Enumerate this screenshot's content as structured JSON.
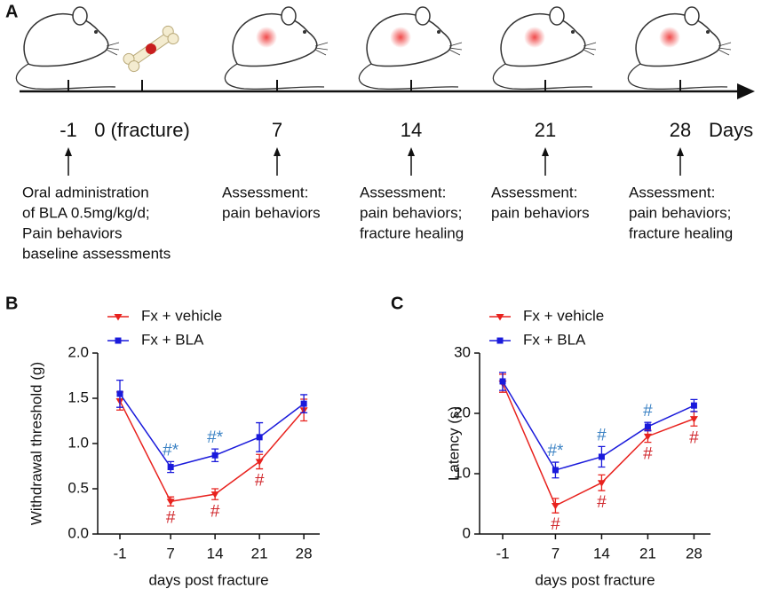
{
  "panel_labels": [
    "A",
    "B",
    "C"
  ],
  "timeline": {
    "unit": "Days",
    "points": [
      {
        "label": "-1",
        "description": [
          "Oral administration",
          "of BLA 0.5mg/kg/d;",
          "Pain behaviors",
          "baseline assessments"
        ]
      },
      {
        "label": "0 (fracture)",
        "description": []
      },
      {
        "label": "7",
        "description": [
          "Assessment:",
          "pain behaviors"
        ]
      },
      {
        "label": "14",
        "description": [
          "Assessment:",
          "pain behaviors;",
          "fracture healing"
        ]
      },
      {
        "label": "21",
        "description": [
          "Assessment:",
          "pain behaviors"
        ]
      },
      {
        "label": "28",
        "description": [
          "Assessment:",
          "pain behaviors;",
          "fracture healing"
        ]
      }
    ]
  },
  "chart_data": [
    {
      "type": "line",
      "xlabel": "days post fracture",
      "ylabel": "Withdrawal threshold (g)",
      "x": [
        -1,
        7,
        14,
        21,
        28
      ],
      "xlim": [
        -4.5,
        30.5
      ],
      "xticks": [
        -1,
        7,
        14,
        21,
        28
      ],
      "ylim": [
        0,
        2
      ],
      "yticks": [
        {
          "value": 0,
          "label": "0.0"
        },
        0.5,
        {
          "value": 1,
          "label": "1.0"
        },
        1.5,
        {
          "value": 2,
          "label": "2.0"
        }
      ],
      "series": [
        {
          "name": "Fx + vehicle",
          "color": "#e8221e",
          "marker": "triangle-down",
          "values": [
            1.47,
            0.36,
            0.44,
            0.8,
            1.37
          ],
          "errors": [
            0.1,
            0.05,
            0.06,
            0.08,
            0.12
          ],
          "annotations": [
            null,
            "#",
            "#",
            "#",
            null
          ],
          "annotation_color": "#d0262b",
          "annotation_side": "below"
        },
        {
          "name": "Fx + BLA",
          "color": "#1a1adb",
          "marker": "square",
          "values": [
            1.55,
            0.74,
            0.87,
            1.07,
            1.44
          ],
          "errors": [
            0.15,
            0.06,
            0.07,
            0.16,
            0.1
          ],
          "annotations": [
            null,
            "#*",
            "#*",
            null,
            null
          ],
          "annotation_color": "#3b82c4",
          "annotation_side": "above"
        }
      ]
    },
    {
      "type": "line",
      "xlabel": "days post fracture",
      "ylabel": "Latency (s)",
      "x": [
        -1,
        7,
        14,
        21,
        28
      ],
      "xlim": [
        -4.5,
        30.5
      ],
      "xticks": [
        -1,
        7,
        14,
        21,
        28
      ],
      "ylim": [
        0,
        30
      ],
      "yticks": [
        0,
        10,
        20,
        30
      ],
      "series": [
        {
          "name": "Fx + vehicle",
          "color": "#e8221e",
          "marker": "triangle-down",
          "values": [
            25.0,
            4.7,
            8.5,
            16.2,
            19.1
          ],
          "errors": [
            1.5,
            1.2,
            1.3,
            1.0,
            1.2
          ],
          "annotations": [
            null,
            "#",
            "#",
            "#",
            "#"
          ],
          "annotation_color": "#d0262b",
          "annotation_side": "below"
        },
        {
          "name": "Fx + BLA",
          "color": "#1a1adb",
          "marker": "square",
          "values": [
            25.3,
            10.6,
            12.8,
            17.8,
            21.3
          ],
          "errors": [
            1.5,
            1.3,
            1.7,
            0.7,
            1.0
          ],
          "annotations": [
            null,
            "#*",
            "#",
            "#",
            null
          ],
          "annotation_color": "#3b82c4",
          "annotation_side": "above"
        }
      ]
    }
  ]
}
